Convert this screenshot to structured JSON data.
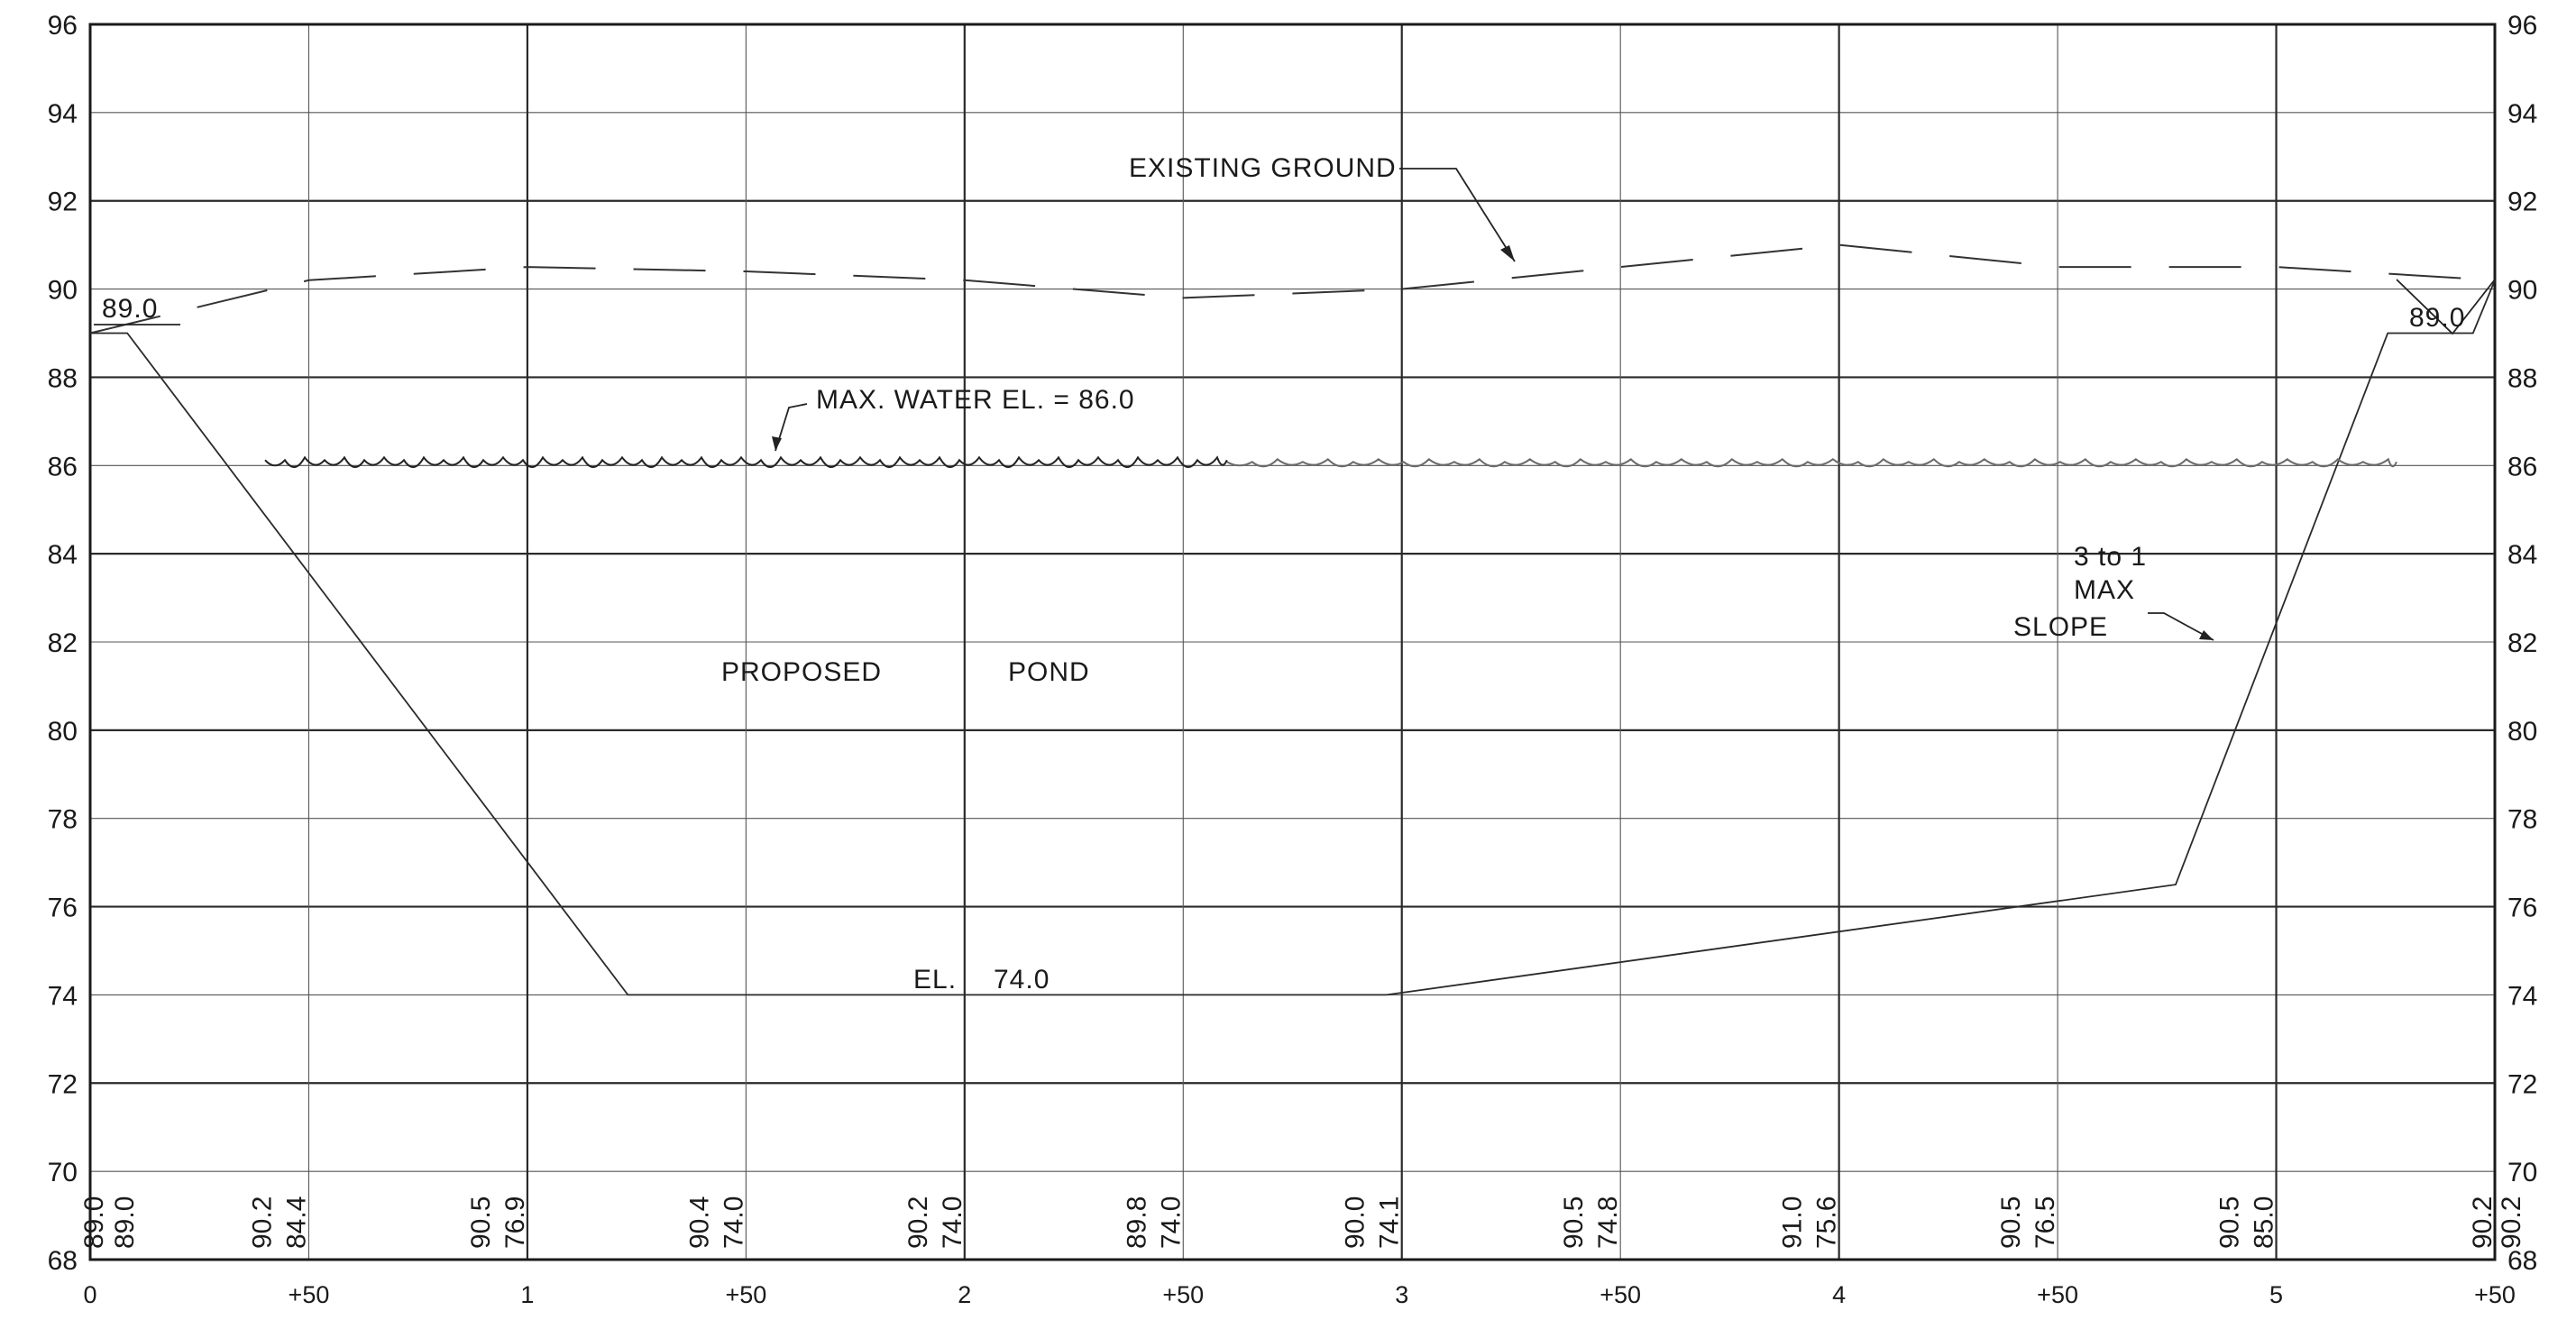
{
  "drawing": {
    "elevations": [
      "96",
      "94",
      "92",
      "90",
      "88",
      "86",
      "84",
      "82",
      "80",
      "78",
      "76",
      "74",
      "72",
      "70",
      "68"
    ],
    "stations": [
      "0",
      "+50",
      "1",
      "+50",
      "2",
      "+50",
      "3",
      "+50",
      "4",
      "+50",
      "5",
      "+50"
    ],
    "ground_elevations": [
      "89.0",
      "90.2",
      "90.5",
      "90.4",
      "90.2",
      "89.8",
      "90.0",
      "90.5",
      "91.0",
      "90.5",
      "90.5",
      "90.2"
    ],
    "pond_elevations": [
      "89.0",
      "84.4",
      "76.9",
      "74.0",
      "74.0",
      "74.0",
      "74.1",
      "74.8",
      "75.6",
      "76.5",
      "85.0",
      "90.2"
    ],
    "labels": {
      "existing_ground": "EXISTING GROUND",
      "max_water": "MAX. WATER EL. = 86.0",
      "proposed": "PROPOSED",
      "pond": "POND",
      "bottom_el": "EL.",
      "bottom_value": "74.0",
      "slope_line1": "3 to 1",
      "slope_line2": "MAX",
      "slope_line3": "SLOPE",
      "left_top_el": "89.0",
      "right_top_el": "89.0"
    }
  },
  "colors": {
    "ink": "#1a1a1a",
    "water_dark": "#222222",
    "water_light": "#6a6a6a",
    "background": "#ffffff"
  }
}
